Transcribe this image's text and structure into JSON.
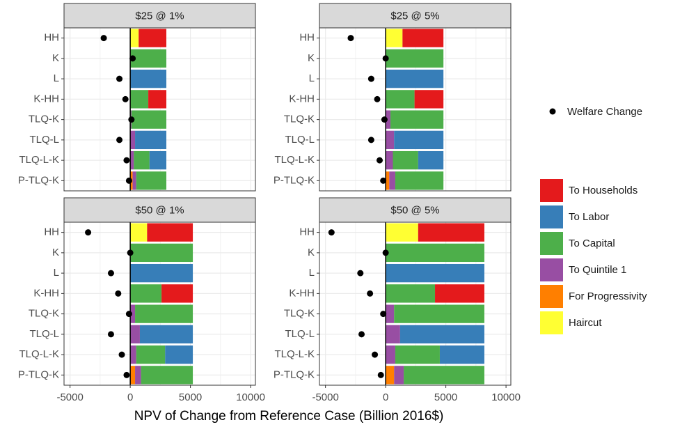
{
  "chart_data": {
    "type": "bar",
    "orientation": "horizontal",
    "x_label": "NPV of Change from Reference Case (Billion 2016$)",
    "categories": [
      "HH",
      "K",
      "L",
      "K-HH",
      "TLQ-K",
      "TLQ-L",
      "TLQ-L-K",
      "P-TLQ-K"
    ],
    "xlim": [
      -5500,
      10400
    ],
    "xticks": [
      -5000,
      0,
      5000,
      10000
    ],
    "grid": true,
    "series": [
      {
        "name": "To Households",
        "color": "#e41a1c"
      },
      {
        "name": "To Labor",
        "color": "#377eb8"
      },
      {
        "name": "To Capital",
        "color": "#4daf4a"
      },
      {
        "name": "To Quintile 1",
        "color": "#984ea3"
      },
      {
        "name": "For Progressivity",
        "color": "#ff7f00"
      },
      {
        "name": "Haircut",
        "color": "#ffff33"
      }
    ],
    "points": {
      "name": "Welfare Change",
      "color": "#000000"
    },
    "panels": [
      {
        "title": "$25 @ 1%",
        "values": [
          [
            2300,
            0,
            0,
            1500,
            0,
            0,
            0,
            0
          ],
          [
            0,
            0,
            3000,
            0,
            0,
            2600,
            1400,
            0
          ],
          [
            0,
            3000,
            0,
            1500,
            2900,
            0,
            1300,
            2500
          ],
          [
            0,
            0,
            0,
            0,
            100,
            400,
            300,
            300
          ],
          [
            0,
            0,
            0,
            0,
            0,
            0,
            0,
            200
          ],
          [
            700,
            0,
            0,
            0,
            0,
            0,
            0,
            0
          ]
        ],
        "welfare": [
          -2200,
          200,
          -900,
          -400,
          100,
          -900,
          -300,
          -100
        ]
      },
      {
        "title": "$25 @ 5%",
        "values": [
          [
            3400,
            0,
            0,
            2400,
            0,
            0,
            0,
            0
          ],
          [
            0,
            0,
            4800,
            0,
            0,
            4100,
            2100,
            0
          ],
          [
            0,
            4800,
            0,
            2400,
            4400,
            0,
            2100,
            4000
          ],
          [
            0,
            0,
            0,
            0,
            400,
            700,
            600,
            500
          ],
          [
            0,
            0,
            0,
            0,
            0,
            0,
            0,
            300
          ],
          [
            1400,
            0,
            0,
            0,
            0,
            0,
            0,
            0
          ]
        ],
        "welfare": [
          -2900,
          0,
          -1200,
          -700,
          -100,
          -1200,
          -500,
          -200
        ]
      },
      {
        "title": "$50 @ 1%",
        "values": [
          [
            3800,
            0,
            0,
            2600,
            0,
            0,
            0,
            0
          ],
          [
            0,
            0,
            5200,
            0,
            0,
            4400,
            2300,
            0
          ],
          [
            0,
            5200,
            0,
            2600,
            4800,
            0,
            2400,
            4300
          ],
          [
            0,
            0,
            0,
            0,
            400,
            800,
            500,
            500
          ],
          [
            0,
            0,
            0,
            0,
            0,
            0,
            0,
            400
          ],
          [
            1400,
            0,
            0,
            0,
            0,
            0,
            0,
            0
          ]
        ],
        "welfare": [
          -3500,
          0,
          -1600,
          -1000,
          -100,
          -1600,
          -700,
          -300
        ]
      },
      {
        "title": "$50 @ 5%",
        "values": [
          [
            5500,
            0,
            0,
            4100,
            0,
            0,
            0,
            0
          ],
          [
            0,
            0,
            8200,
            0,
            0,
            7000,
            3700,
            0
          ],
          [
            0,
            8200,
            0,
            4100,
            7500,
            0,
            3700,
            6700
          ],
          [
            0,
            0,
            0,
            0,
            700,
            1200,
            800,
            800
          ],
          [
            0,
            0,
            0,
            0,
            0,
            0,
            0,
            700
          ],
          [
            2700,
            0,
            0,
            0,
            0,
            0,
            0,
            0
          ]
        ],
        "welfare": [
          -4500,
          0,
          -2100,
          -1300,
          -200,
          -2000,
          -900,
          -400
        ]
      }
    ]
  }
}
